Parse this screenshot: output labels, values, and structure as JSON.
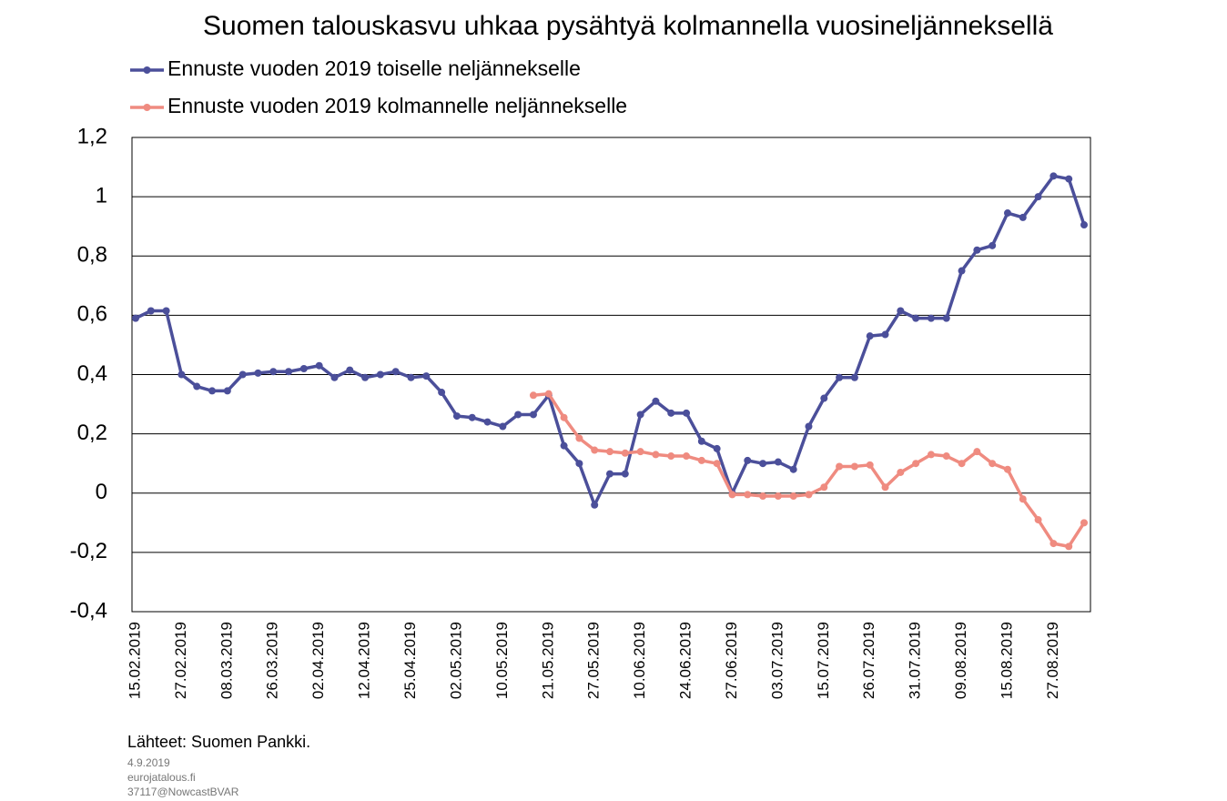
{
  "chart_data": {
    "type": "line",
    "title": "Suomen talouskasvu uhkaa pysähtyä kolmannella vuosineljänneksellä",
    "categories": [
      "15.02.2019",
      null,
      null,
      "27.02.2019",
      null,
      null,
      "08.03.2019",
      null,
      null,
      "26.03.2019",
      null,
      null,
      "02.04.2019",
      null,
      null,
      "12.04.2019",
      null,
      null,
      "25.04.2019",
      null,
      null,
      "02.05.2019",
      null,
      null,
      "10.05.2019",
      null,
      null,
      "21.05.2019",
      null,
      null,
      "27.05.2019",
      null,
      null,
      "10.06.2019",
      null,
      null,
      "24.06.2019",
      null,
      null,
      "27.06.2019",
      null,
      null,
      "03.07.2019",
      null,
      null,
      "15.07.2019",
      null,
      null,
      "26.07.2019",
      null,
      null,
      "31.07.2019",
      null,
      null,
      "09.08.2019",
      null,
      null,
      "15.08.2019",
      null,
      null,
      "27.08.2019",
      null,
      null
    ],
    "series": [
      {
        "name": "Ennuste vuoden 2019 toiselle neljännekselle",
        "color": "#4b4f9a",
        "values": [
          0.59,
          0.615,
          0.615,
          0.4,
          0.36,
          0.345,
          0.345,
          0.4,
          0.405,
          0.41,
          0.41,
          0.42,
          0.43,
          0.39,
          0.415,
          0.39,
          0.4,
          0.41,
          0.39,
          0.395,
          0.34,
          0.26,
          0.255,
          0.24,
          0.225,
          0.265,
          0.265,
          0.33,
          0.16,
          0.1,
          -0.04,
          0.065,
          0.065,
          0.265,
          0.31,
          0.27,
          0.27,
          0.175,
          0.15,
          0.0,
          0.11,
          0.1,
          0.105,
          0.08,
          0.225,
          0.32,
          0.39,
          0.39,
          0.53,
          0.535,
          0.615,
          0.59,
          0.59,
          0.59,
          0.75,
          0.82,
          0.835,
          0.945,
          0.93,
          1.0,
          1.07,
          1.06,
          0.905
        ]
      },
      {
        "name": "Ennuste vuoden 2019 kolmannelle neljännekselle",
        "color": "#ef8b80",
        "values": [
          null,
          null,
          null,
          null,
          null,
          null,
          null,
          null,
          null,
          null,
          null,
          null,
          null,
          null,
          null,
          null,
          null,
          null,
          null,
          null,
          null,
          null,
          null,
          null,
          null,
          null,
          0.33,
          0.335,
          0.255,
          0.185,
          0.145,
          0.14,
          0.135,
          0.14,
          0.13,
          0.125,
          0.125,
          0.11,
          0.1,
          -0.005,
          -0.005,
          -0.01,
          -0.01,
          -0.01,
          -0.005,
          0.02,
          0.09,
          0.09,
          0.095,
          0.02,
          0.07,
          0.1,
          0.13,
          0.125,
          0.1,
          0.14,
          0.1,
          0.08,
          -0.02,
          -0.09,
          -0.17,
          -0.18,
          -0.1
        ]
      }
    ],
    "ylim": [
      -0.4,
      1.2
    ],
    "yticks": [
      {
        "value": -0.4,
        "label": "-0,4"
      },
      {
        "value": -0.2,
        "label": "-0,2"
      },
      0,
      {
        "value": 0.2,
        "label": "0,2"
      },
      {
        "value": 0.4,
        "label": "0,4"
      },
      {
        "value": 0.6,
        "label": "0,6"
      },
      {
        "value": 0.8,
        "label": "0,8"
      },
      1,
      {
        "value": 1.2,
        "label": "1,2"
      }
    ],
    "grid": true,
    "source": "Lähteet: Suomen Pankki.",
    "footnotes": [
      "4.9.2019",
      "eurojatalous.fi",
      "37117@NowcastBVAR"
    ]
  }
}
